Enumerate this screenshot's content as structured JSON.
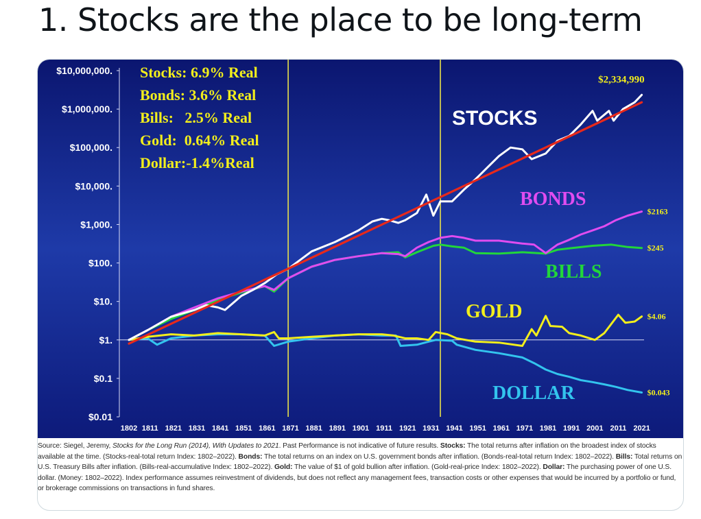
{
  "heading": "1. Stocks are the place to be long-term",
  "chart_data": {
    "type": "line",
    "scale": "log",
    "ylim": [
      0.01,
      10000000
    ],
    "xlim": [
      1802,
      2022
    ],
    "y_ticks": [
      {
        "v": 10000000,
        "label": "$10,000,000."
      },
      {
        "v": 1000000,
        "label": "$1,000,000."
      },
      {
        "v": 100000,
        "label": "$100,000."
      },
      {
        "v": 10000,
        "label": "$10,000."
      },
      {
        "v": 1000,
        "label": "$1,000."
      },
      {
        "v": 100,
        "label": "$100."
      },
      {
        "v": 10,
        "label": "$10."
      },
      {
        "v": 1,
        "label": "$1."
      },
      {
        "v": 0.1,
        "label": "$0.1"
      },
      {
        "v": 0.01,
        "label": "$0.01"
      }
    ],
    "x_ticks": [
      "1802",
      "1811",
      "1821",
      "1831",
      "1841",
      "1851",
      "1861",
      "1871",
      "1881",
      "1891",
      "1901",
      "1911",
      "1921",
      "1931",
      "1941",
      "1951",
      "1961",
      "1971",
      "1981",
      "1991",
      "2001",
      "2011",
      "2021"
    ],
    "vlines": [
      1870,
      1935
    ],
    "legend_box": [
      "Stocks: 6.9% Real",
      "Bonds: 3.6% Real",
      "Bills:   2.5% Real",
      "Gold:  0.64% Real",
      "Dollar:-1.4%Real"
    ],
    "series": [
      {
        "name": "STOCKS",
        "color": "#ffffff",
        "end_label": "$2,334,990",
        "points": [
          [
            1802,
            1
          ],
          [
            1810,
            1.8
          ],
          [
            1820,
            4
          ],
          [
            1830,
            6
          ],
          [
            1835,
            8
          ],
          [
            1840,
            7
          ],
          [
            1843,
            6
          ],
          [
            1850,
            14
          ],
          [
            1855,
            20
          ],
          [
            1860,
            30
          ],
          [
            1865,
            50
          ],
          [
            1870,
            70
          ],
          [
            1880,
            200
          ],
          [
            1890,
            350
          ],
          [
            1900,
            700
          ],
          [
            1906,
            1200
          ],
          [
            1910,
            1400
          ],
          [
            1913,
            1300
          ],
          [
            1917,
            1100
          ],
          [
            1920,
            1300
          ],
          [
            1925,
            2000
          ],
          [
            1929,
            6000
          ],
          [
            1932,
            1700
          ],
          [
            1935,
            4000
          ],
          [
            1940,
            4000
          ],
          [
            1945,
            8000
          ],
          [
            1950,
            15000
          ],
          [
            1955,
            30000
          ],
          [
            1960,
            60000
          ],
          [
            1965,
            100000
          ],
          [
            1970,
            90000
          ],
          [
            1974,
            50000
          ],
          [
            1980,
            70000
          ],
          [
            1985,
            150000
          ],
          [
            1990,
            200000
          ],
          [
            1995,
            400000
          ],
          [
            2000,
            900000
          ],
          [
            2002,
            500000
          ],
          [
            2007,
            900000
          ],
          [
            2009,
            500000
          ],
          [
            2013,
            1000000
          ],
          [
            2018,
            1500000
          ],
          [
            2021,
            2334990
          ]
        ]
      },
      {
        "name": "BONDS",
        "color": "#e04cf0",
        "end_label": "$2163",
        "points": [
          [
            1802,
            1
          ],
          [
            1810,
            1.8
          ],
          [
            1820,
            4
          ],
          [
            1830,
            7
          ],
          [
            1840,
            12
          ],
          [
            1850,
            18
          ],
          [
            1860,
            25
          ],
          [
            1864,
            20
          ],
          [
            1870,
            40
          ],
          [
            1880,
            80
          ],
          [
            1890,
            120
          ],
          [
            1900,
            150
          ],
          [
            1910,
            180
          ],
          [
            1917,
            170
          ],
          [
            1920,
            150
          ],
          [
            1925,
            250
          ],
          [
            1930,
            350
          ],
          [
            1935,
            450
          ],
          [
            1940,
            500
          ],
          [
            1945,
            450
          ],
          [
            1950,
            380
          ],
          [
            1960,
            380
          ],
          [
            1970,
            320
          ],
          [
            1975,
            300
          ],
          [
            1980,
            180
          ],
          [
            1985,
            300
          ],
          [
            1990,
            400
          ],
          [
            1995,
            550
          ],
          [
            2000,
            700
          ],
          [
            2005,
            900
          ],
          [
            2010,
            1300
          ],
          [
            2015,
            1700
          ],
          [
            2021,
            2163
          ]
        ]
      },
      {
        "name": "BILLS",
        "color": "#22d63a",
        "end_label": "$245",
        "points": [
          [
            1802,
            1
          ],
          [
            1810,
            1.8
          ],
          [
            1820,
            3.5
          ],
          [
            1830,
            6
          ],
          [
            1840,
            11
          ],
          [
            1850,
            17
          ],
          [
            1860,
            25
          ],
          [
            1864,
            18
          ],
          [
            1870,
            40
          ],
          [
            1880,
            80
          ],
          [
            1890,
            120
          ],
          [
            1900,
            150
          ],
          [
            1910,
            180
          ],
          [
            1917,
            190
          ],
          [
            1920,
            140
          ],
          [
            1925,
            190
          ],
          [
            1932,
            280
          ],
          [
            1935,
            300
          ],
          [
            1940,
            270
          ],
          [
            1945,
            250
          ],
          [
            1950,
            180
          ],
          [
            1960,
            175
          ],
          [
            1970,
            190
          ],
          [
            1980,
            175
          ],
          [
            1985,
            220
          ],
          [
            1990,
            240
          ],
          [
            2000,
            280
          ],
          [
            2008,
            300
          ],
          [
            2015,
            260
          ],
          [
            2021,
            245
          ]
        ]
      },
      {
        "name": "GOLD",
        "color": "#f2ee1c",
        "end_label": "$4.06",
        "points": [
          [
            1802,
            1
          ],
          [
            1810,
            1.2
          ],
          [
            1820,
            1.4
          ],
          [
            1830,
            1.3
          ],
          [
            1840,
            1.5
          ],
          [
            1850,
            1.4
          ],
          [
            1860,
            1.3
          ],
          [
            1864,
            1.6
          ],
          [
            1866,
            1.1
          ],
          [
            1870,
            1.1
          ],
          [
            1880,
            1.2
          ],
          [
            1890,
            1.3
          ],
          [
            1900,
            1.4
          ],
          [
            1910,
            1.4
          ],
          [
            1915,
            1.3
          ],
          [
            1920,
            1.1
          ],
          [
            1925,
            1.1
          ],
          [
            1930,
            1.0
          ],
          [
            1933,
            1.6
          ],
          [
            1938,
            1.4
          ],
          [
            1942,
            1.1
          ],
          [
            1950,
            0.9
          ],
          [
            1960,
            0.85
          ],
          [
            1970,
            0.7
          ],
          [
            1974,
            1.9
          ],
          [
            1976,
            1.3
          ],
          [
            1980,
            4.2
          ],
          [
            1982,
            2.3
          ],
          [
            1987,
            2.2
          ],
          [
            1990,
            1.5
          ],
          [
            1995,
            1.3
          ],
          [
            2001,
            1.0
          ],
          [
            2005,
            1.5
          ],
          [
            2011,
            4.5
          ],
          [
            2014,
            2.8
          ],
          [
            2018,
            3.0
          ],
          [
            2021,
            4.06
          ]
        ]
      },
      {
        "name": "DOLLAR",
        "color": "#33c4ee",
        "end_label": "$0.043",
        "points": [
          [
            1802,
            1
          ],
          [
            1810,
            1.1
          ],
          [
            1814,
            0.75
          ],
          [
            1820,
            1.1
          ],
          [
            1830,
            1.3
          ],
          [
            1840,
            1.4
          ],
          [
            1850,
            1.4
          ],
          [
            1860,
            1.3
          ],
          [
            1864,
            0.7
          ],
          [
            1870,
            0.9
          ],
          [
            1880,
            1.1
          ],
          [
            1890,
            1.3
          ],
          [
            1900,
            1.4
          ],
          [
            1910,
            1.3
          ],
          [
            1916,
            1.3
          ],
          [
            1918,
            0.7
          ],
          [
            1925,
            0.75
          ],
          [
            1930,
            0.9
          ],
          [
            1933,
            1.0
          ],
          [
            1940,
            0.95
          ],
          [
            1942,
            0.75
          ],
          [
            1950,
            0.55
          ],
          [
            1960,
            0.45
          ],
          [
            1970,
            0.35
          ],
          [
            1975,
            0.25
          ],
          [
            1980,
            0.17
          ],
          [
            1985,
            0.13
          ],
          [
            1990,
            0.11
          ],
          [
            1995,
            0.09
          ],
          [
            2000,
            0.08
          ],
          [
            2005,
            0.07
          ],
          [
            2010,
            0.06
          ],
          [
            2015,
            0.05
          ],
          [
            2021,
            0.043
          ]
        ]
      },
      {
        "name": "trend",
        "color": "#e8291b",
        "points": [
          [
            1802,
            0.8
          ],
          [
            2021,
            1500000
          ]
        ]
      }
    ],
    "series_labels": [
      {
        "text": "STOCKS",
        "color": "#ffffff",
        "font": "sans"
      },
      {
        "text": "BONDS",
        "color": "#e04cf0",
        "font": "serif"
      },
      {
        "text": "BILLS",
        "color": "#22d63a",
        "font": "serif"
      },
      {
        "text": "GOLD",
        "color": "#f2ee1c",
        "font": "serif"
      },
      {
        "text": "DOLLAR",
        "color": "#33c4ee",
        "font": "serif"
      }
    ]
  },
  "source": {
    "prefix": "Source: Siegel, Jeremy, ",
    "book": "Stocks for the Long Run (2014), With Updates to 2021",
    "after_book": ". Past Performance is not indicative of future results. ",
    "stocks_label": "Stocks:",
    "stocks_text": " The total returns after inflation on the broadest index of stocks available at the time. (Stocks-real-total return Index: 1802–2022). ",
    "bonds_label": "Bonds:",
    "bonds_text": " The total returns on an index on U.S. government bonds after inflation. (Bonds-real-total return Index: 1802–2022). ",
    "bills_label": "Bills:",
    "bills_text": " Total returns on U.S. Treasury Bills after inflation. (Bills-real-accumulative Index: 1802–2022). ",
    "gold_label": "Gold:",
    "gold_text": " The value of $1 of gold bullion after inflation. (Gold-real-price Index: 1802–2022). ",
    "dollar_label": "Dollar:",
    "dollar_text": " The purchasing power of one U.S. dollar. (Money: 1802–2022). Index performance assumes reinvestment of dividends, but does not reflect any management fees, transaction costs or other expenses that would be incurred by a portfolio or fund, or brokerage commissions on transactions in fund shares."
  }
}
